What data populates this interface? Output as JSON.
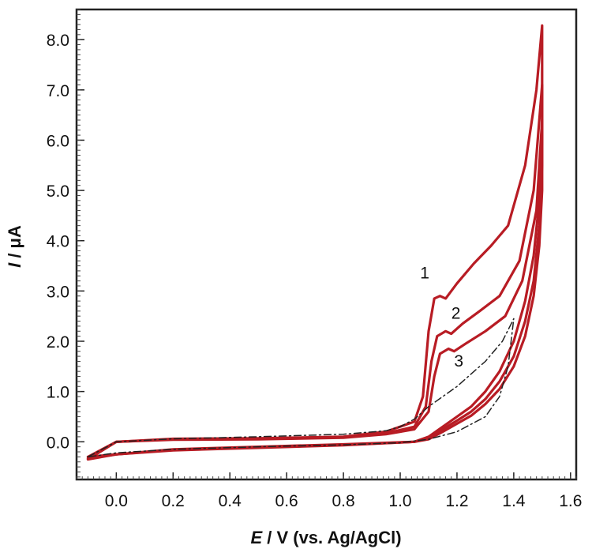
{
  "chart_data": {
    "type": "line",
    "title": "",
    "xlabel": {
      "symbol": "E",
      "rest": " / V (vs. Ag/AgCl)"
    },
    "ylabel": {
      "symbol": "I",
      "rest": " / μA"
    },
    "xlim": [
      -0.14,
      1.62
    ],
    "ylim": [
      -0.75,
      8.6
    ],
    "x_ticks": [
      {
        "value": 0.0,
        "label": "0.0"
      },
      {
        "value": 0.2,
        "label": "0.2"
      },
      {
        "value": 0.4,
        "label": "0.4"
      },
      {
        "value": 0.6,
        "label": "0.6"
      },
      {
        "value": 0.8,
        "label": "0.8"
      },
      {
        "value": 1.0,
        "label": "1.0"
      },
      {
        "value": 1.2,
        "label": "1.2"
      },
      {
        "value": 1.4,
        "label": "1.4"
      },
      {
        "value": 1.6,
        "label": "1.6"
      }
    ],
    "y_ticks": [
      {
        "value": 0.0,
        "label": "0.0"
      },
      {
        "value": 1.0,
        "label": "1.0"
      },
      {
        "value": 2.0,
        "label": "2.0"
      },
      {
        "value": 3.0,
        "label": "3.0"
      },
      {
        "value": 4.0,
        "label": "4.0"
      },
      {
        "value": 5.0,
        "label": "5.0"
      },
      {
        "value": 6.0,
        "label": "6.0"
      },
      {
        "value": 7.0,
        "label": "7.0"
      },
      {
        "value": 8.0,
        "label": "8.0"
      }
    ],
    "grid": false,
    "series": [
      {
        "label": "1",
        "color": "#b81c24",
        "style": "solid",
        "x": [
          -0.1,
          0.0,
          0.2,
          0.5,
          0.8,
          0.95,
          1.05,
          1.08,
          1.1,
          1.12,
          1.14,
          1.16,
          1.2,
          1.26,
          1.32,
          1.38,
          1.44,
          1.48,
          1.5,
          1.5,
          1.49,
          1.47,
          1.44,
          1.4,
          1.35,
          1.3,
          1.25,
          1.2,
          1.15,
          1.1,
          1.05,
          0.8,
          0.5,
          0.2,
          0.0,
          -0.1
        ],
        "y": [
          -0.35,
          0.0,
          0.06,
          0.07,
          0.1,
          0.2,
          0.4,
          0.9,
          2.2,
          2.85,
          2.9,
          2.85,
          3.15,
          3.55,
          3.9,
          4.3,
          5.5,
          7.0,
          8.28,
          6.0,
          4.8,
          3.7,
          2.8,
          2.0,
          1.4,
          1.0,
          0.7,
          0.5,
          0.3,
          0.1,
          0.0,
          -0.05,
          -0.1,
          -0.15,
          -0.25,
          -0.35
        ]
      },
      {
        "label": "2",
        "color": "#b81c24",
        "style": "solid",
        "x": [
          -0.1,
          0.0,
          0.2,
          0.5,
          0.8,
          0.95,
          1.05,
          1.09,
          1.11,
          1.13,
          1.16,
          1.18,
          1.22,
          1.28,
          1.35,
          1.42,
          1.47,
          1.5,
          1.5,
          1.49,
          1.47,
          1.44,
          1.4,
          1.35,
          1.3,
          1.25,
          1.2,
          1.15,
          1.1,
          1.05,
          0.8,
          0.5,
          0.2,
          0.0,
          -0.1
        ],
        "y": [
          -0.33,
          0.0,
          0.05,
          0.06,
          0.09,
          0.17,
          0.3,
          0.7,
          1.6,
          2.1,
          2.2,
          2.15,
          2.35,
          2.6,
          2.9,
          3.6,
          5.0,
          7.1,
          5.5,
          4.3,
          3.2,
          2.4,
          1.7,
          1.2,
          0.85,
          0.6,
          0.42,
          0.25,
          0.08,
          0.0,
          -0.06,
          -0.11,
          -0.16,
          -0.25,
          -0.33
        ]
      },
      {
        "label": "3",
        "color": "#b81c24",
        "style": "solid",
        "x": [
          -0.1,
          0.0,
          0.2,
          0.5,
          0.8,
          0.95,
          1.05,
          1.1,
          1.12,
          1.14,
          1.17,
          1.19,
          1.23,
          1.3,
          1.37,
          1.43,
          1.48,
          1.5,
          1.5,
          1.49,
          1.47,
          1.44,
          1.4,
          1.35,
          1.3,
          1.25,
          1.2,
          1.15,
          1.1,
          1.05,
          0.8,
          0.5,
          0.2,
          0.0,
          -0.1
        ],
        "y": [
          -0.3,
          0.0,
          0.04,
          0.05,
          0.08,
          0.15,
          0.25,
          0.6,
          1.3,
          1.75,
          1.85,
          1.8,
          1.95,
          2.2,
          2.5,
          3.2,
          4.6,
          6.4,
          5.0,
          3.9,
          2.9,
          2.1,
          1.5,
          1.05,
          0.75,
          0.52,
          0.36,
          0.2,
          0.05,
          0.0,
          -0.07,
          -0.12,
          -0.17,
          -0.25,
          -0.3
        ]
      },
      {
        "label": "",
        "color": "#222222",
        "style": "dashdot",
        "x": [
          -0.1,
          0.0,
          0.2,
          0.5,
          0.8,
          0.95,
          1.0,
          1.05,
          1.1,
          1.2,
          1.3,
          1.36,
          1.4,
          1.38,
          1.35,
          1.3,
          1.2,
          1.1,
          1.0,
          0.8,
          0.5,
          0.2,
          0.0,
          -0.1
        ],
        "y": [
          -0.3,
          0.0,
          0.06,
          0.1,
          0.15,
          0.22,
          0.3,
          0.45,
          0.7,
          1.1,
          1.6,
          2.0,
          2.45,
          1.5,
          0.9,
          0.5,
          0.2,
          0.05,
          -0.02,
          -0.06,
          -0.1,
          -0.15,
          -0.22,
          -0.3
        ]
      }
    ],
    "annotations": [
      {
        "text": "1",
        "x": 1.07,
        "y": 3.25
      },
      {
        "text": "2",
        "x": 1.18,
        "y": 2.45
      },
      {
        "text": "3",
        "x": 1.19,
        "y": 1.5
      }
    ]
  }
}
